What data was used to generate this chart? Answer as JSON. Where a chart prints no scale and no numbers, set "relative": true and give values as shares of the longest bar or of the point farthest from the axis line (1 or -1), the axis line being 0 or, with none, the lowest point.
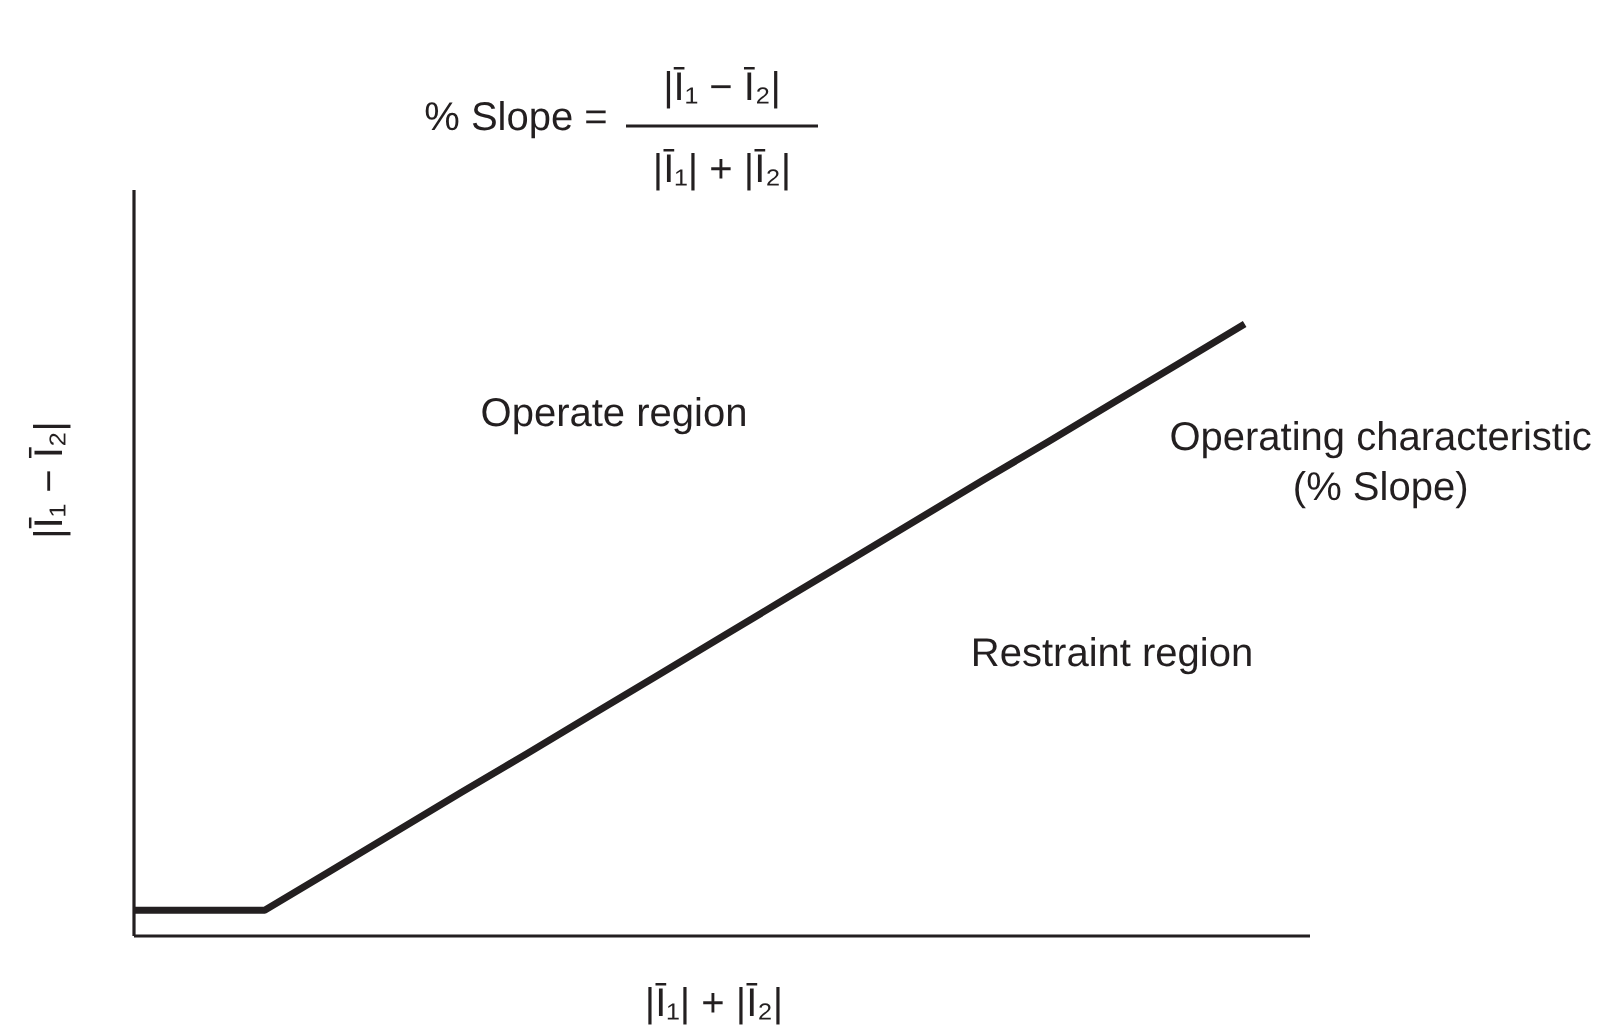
{
  "chart_data": {
    "type": "line",
    "relative": true,
    "categories": [
      null,
      null,
      null,
      null,
      null,
      null,
      null,
      null,
      null,
      null,
      null,
      null,
      null,
      null,
      null,
      null,
      null,
      null,
      null
    ],
    "xlabel": "|Ī₁| + |Ī₂|",
    "ylabel": "|Ī₁ − Ī₂|",
    "series": [
      {
        "name": "Operating characteristic (% Slope)",
        "color": "#231f20",
        "values": [
          0.042,
          0.042,
          0.042,
          0.106,
          0.17,
          0.234,
          0.297,
          0.361,
          0.425,
          0.489,
          0.553,
          0.617,
          0.681,
          0.745,
          0.808,
          0.872,
          0.936,
          1,
          null
        ]
      }
    ],
    "annotations": [
      "% Slope =",
      "|Ī₁ − Ī₂|",
      "|Ī₁| + |Ī₂|",
      "Operate region",
      "Restraint region"
    ]
  }
}
